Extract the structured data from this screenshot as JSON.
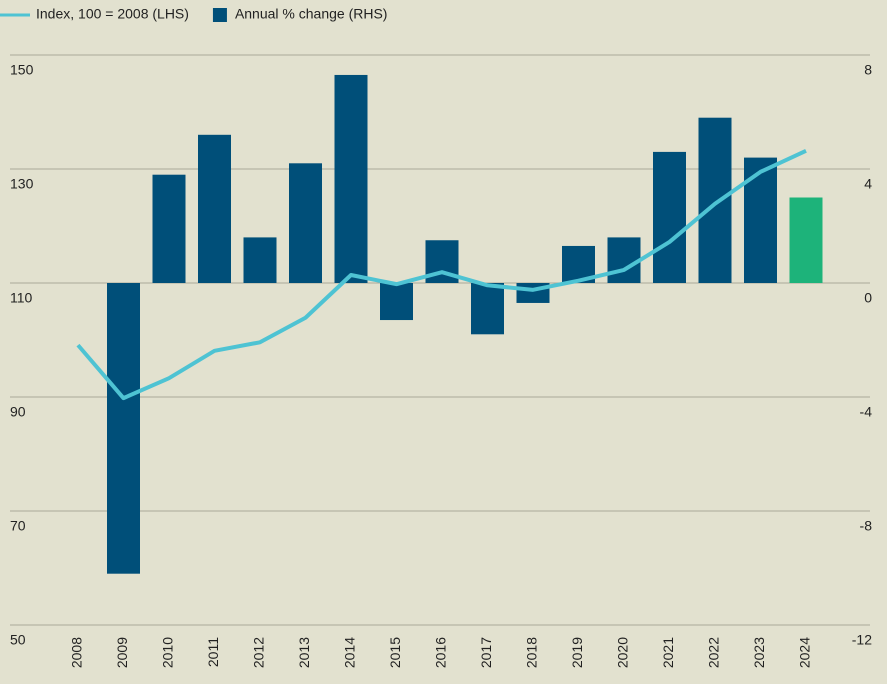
{
  "chart_data": {
    "type": "bar-line",
    "categories": [
      "2008",
      "2009",
      "2010",
      "2011",
      "2012",
      "2013",
      "2014",
      "2015",
      "2016",
      "2017",
      "2018",
      "2019",
      "2020",
      "2021",
      "2022",
      "2023",
      "2024"
    ],
    "series": [
      {
        "name": "Index, 100 = 2008 (LHS)",
        "type": "line",
        "color": "#4ec3d3",
        "axis": "y",
        "values": [
          99.1,
          89.8,
          93.3,
          98.1,
          99.6,
          103.9,
          111.4,
          109.8,
          111.9,
          109.6,
          108.8,
          110.4,
          112.3,
          117.2,
          123.9,
          129.5,
          133.2
        ]
      },
      {
        "name": "Annual % change (RHS)",
        "type": "bar",
        "color": "#004f79",
        "axis": "y2",
        "colors": [
          "#004f79",
          "#004f79",
          "#004f79",
          "#004f79",
          "#004f79",
          "#004f79",
          "#004f79",
          "#004f79",
          "#004f79",
          "#004f79",
          "#004f79",
          "#004f79",
          "#004f79",
          "#004f79",
          "#004f79",
          "#004f79",
          "#1db37a"
        ],
        "values": [
          null,
          -10.2,
          3.8,
          5.2,
          1.6,
          4.2,
          7.3,
          -1.3,
          1.5,
          -1.8,
          -0.7,
          1.3,
          1.6,
          4.6,
          5.8,
          4.4,
          3.0
        ]
      }
    ],
    "ylim": [
      50,
      150
    ],
    "yticks": [
      50,
      70,
      90,
      110,
      130,
      150
    ],
    "y2lim": [
      -12,
      8
    ],
    "y2ticks": [
      -12,
      -8,
      -4,
      0,
      4,
      8
    ],
    "grid": true
  }
}
